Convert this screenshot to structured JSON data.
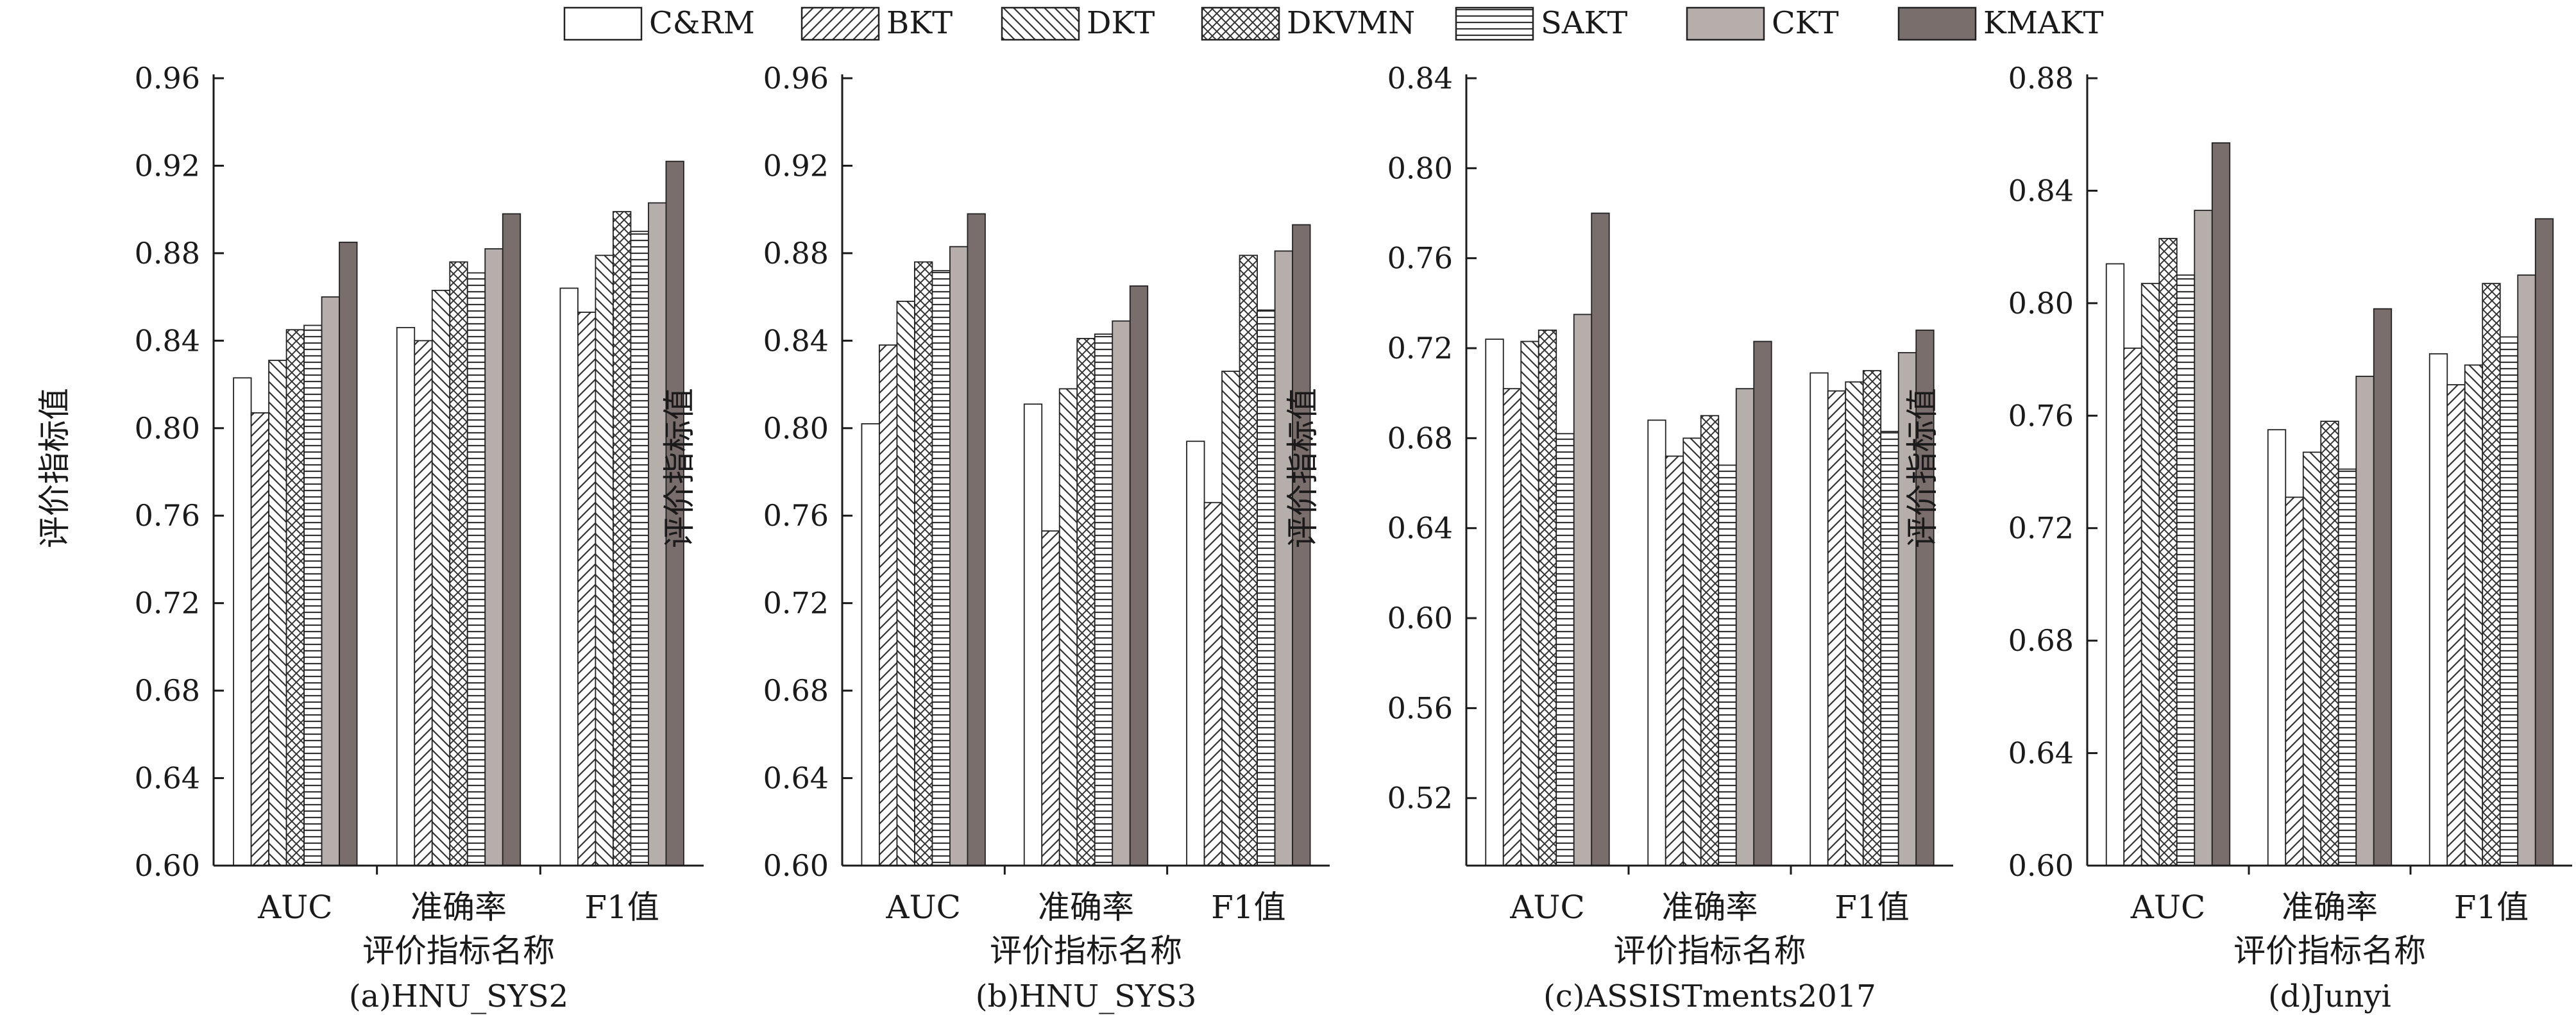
{
  "legend": {
    "items": [
      {
        "label": "C&RM",
        "pattern": "empty"
      },
      {
        "label": "BKT",
        "pattern": "diag-right"
      },
      {
        "label": "DKT",
        "pattern": "diag-left"
      },
      {
        "label": "DKVMN",
        "pattern": "cross"
      },
      {
        "label": "SAKT",
        "pattern": "horizontal"
      },
      {
        "label": "CKT",
        "pattern": "light-gray"
      },
      {
        "label": "KMAKT",
        "pattern": "dark-gray"
      }
    ],
    "position": "top-center"
  },
  "colors": {
    "light_gray": "#b5aeaa",
    "dark_gray": "#7a6e6c",
    "axis": "#1a1a1a"
  },
  "chart_data": [
    {
      "type": "bar",
      "caption": "(a)HNU_SYS2",
      "xlabel": "评价指标名称",
      "ylabel": "评价指标值",
      "categories": [
        "AUC",
        "准确率",
        "F1值"
      ],
      "ylim": [
        0.6,
        0.96
      ],
      "yticks": [
        "0.60",
        "0.64",
        "0.68",
        "0.72",
        "0.76",
        "0.80",
        "0.84",
        "0.88",
        "0.92",
        "0.96"
      ],
      "series": [
        {
          "name": "C&RM",
          "values": [
            0.823,
            0.846,
            0.864
          ]
        },
        {
          "name": "BKT",
          "values": [
            0.807,
            0.84,
            0.853
          ]
        },
        {
          "name": "DKT",
          "values": [
            0.831,
            0.863,
            0.879
          ]
        },
        {
          "name": "DKVMN",
          "values": [
            0.845,
            0.876,
            0.899
          ]
        },
        {
          "name": "SAKT",
          "values": [
            0.847,
            0.871,
            0.89
          ]
        },
        {
          "name": "CKT",
          "values": [
            0.86,
            0.882,
            0.903
          ]
        },
        {
          "name": "KMAKT",
          "values": [
            0.885,
            0.898,
            0.922
          ]
        }
      ]
    },
    {
      "type": "bar",
      "caption": "(b)HNU_SYS3",
      "xlabel": "评价指标名称",
      "ylabel": "评价指标值",
      "categories": [
        "AUC",
        "准确率",
        "F1值"
      ],
      "ylim": [
        0.6,
        0.96
      ],
      "yticks": [
        "0.60",
        "0.64",
        "0.68",
        "0.72",
        "0.76",
        "0.80",
        "0.84",
        "0.88",
        "0.92",
        "0.96"
      ],
      "series": [
        {
          "name": "C&RM",
          "values": [
            0.802,
            0.811,
            0.794
          ]
        },
        {
          "name": "BKT",
          "values": [
            0.838,
            0.753,
            0.766
          ]
        },
        {
          "name": "DKT",
          "values": [
            0.858,
            0.818,
            0.826
          ]
        },
        {
          "name": "DKVMN",
          "values": [
            0.876,
            0.841,
            0.879
          ]
        },
        {
          "name": "SAKT",
          "values": [
            0.872,
            0.843,
            0.854
          ]
        },
        {
          "name": "CKT",
          "values": [
            0.883,
            0.849,
            0.881
          ]
        },
        {
          "name": "KMAKT",
          "values": [
            0.898,
            0.865,
            0.893
          ]
        }
      ]
    },
    {
      "type": "bar",
      "caption": "(c)ASSISTments2017",
      "xlabel": "评价指标名称",
      "ylabel": "评价指标值",
      "categories": [
        "AUC",
        "准确率",
        "F1值"
      ],
      "ylim": [
        0.49,
        0.84
      ],
      "yticks": [
        "0.52",
        "0.56",
        "0.60",
        "0.64",
        "0.68",
        "0.72",
        "0.76",
        "0.80",
        "0.84"
      ],
      "series": [
        {
          "name": "C&RM",
          "values": [
            0.724,
            0.688,
            0.709
          ]
        },
        {
          "name": "BKT",
          "values": [
            0.702,
            0.672,
            0.701
          ]
        },
        {
          "name": "DKT",
          "values": [
            0.723,
            0.68,
            0.705
          ]
        },
        {
          "name": "DKVMN",
          "values": [
            0.728,
            0.69,
            0.71
          ]
        },
        {
          "name": "SAKT",
          "values": [
            0.682,
            0.668,
            0.683
          ]
        },
        {
          "name": "CKT",
          "values": [
            0.735,
            0.702,
            0.718
          ]
        },
        {
          "name": "KMAKT",
          "values": [
            0.78,
            0.723,
            0.728
          ]
        }
      ]
    },
    {
      "type": "bar",
      "caption": "(d)Junyi",
      "xlabel": "评价指标名称",
      "ylabel": "评价指标值",
      "categories": [
        "AUC",
        "准确率",
        "F1值"
      ],
      "ylim": [
        0.6,
        0.88
      ],
      "yticks": [
        "0.60",
        "0.64",
        "0.68",
        "0.72",
        "0.76",
        "0.80",
        "0.84",
        "0.88"
      ],
      "series": [
        {
          "name": "C&RM",
          "values": [
            0.814,
            0.755,
            0.782
          ]
        },
        {
          "name": "BKT",
          "values": [
            0.784,
            0.731,
            0.771
          ]
        },
        {
          "name": "DKT",
          "values": [
            0.807,
            0.747,
            0.778
          ]
        },
        {
          "name": "DKVMN",
          "values": [
            0.823,
            0.758,
            0.807
          ]
        },
        {
          "name": "SAKT",
          "values": [
            0.81,
            0.741,
            0.788
          ]
        },
        {
          "name": "CKT",
          "values": [
            0.833,
            0.774,
            0.81
          ]
        },
        {
          "name": "KMAKT",
          "values": [
            0.857,
            0.798,
            0.83
          ]
        }
      ]
    }
  ]
}
